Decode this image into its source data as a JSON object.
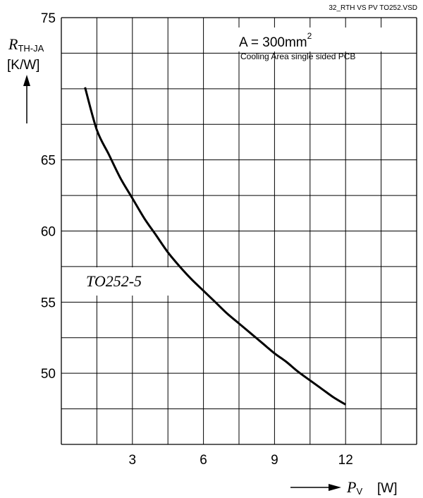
{
  "chart_data": {
    "type": "line",
    "file_label": "32_RTH VS PV TO252.VSD",
    "ylabel": {
      "symbol": "R",
      "subscript": "TH-JA",
      "unit": "[K/W]"
    },
    "xlabel": {
      "symbol": "P",
      "subscript": "V",
      "unit": "[W]"
    },
    "annotation": {
      "main": "A = 300mm",
      "superscript": "2",
      "sub": "Cooling Area single sided PCB"
    },
    "series_label": "TO252-5",
    "xlim": [
      0,
      15
    ],
    "ylim": [
      45,
      75
    ],
    "x_ticks": [
      3,
      6,
      9,
      12
    ],
    "y_ticks": [
      50,
      55,
      60,
      65,
      75
    ],
    "x_tick_labels": [
      "3",
      "6",
      "9",
      "12"
    ],
    "y_tick_labels": [
      "50",
      "55",
      "60",
      "65",
      "75"
    ],
    "grid": true,
    "series": [
      {
        "x": [
          1.0,
          1.5,
          2.0,
          2.5,
          3.0,
          3.5,
          4.0,
          4.5,
          5.0,
          5.5,
          6.0,
          6.5,
          7.0,
          7.5,
          8.0,
          8.5,
          9.0,
          9.5,
          10.0,
          10.5,
          11.0,
          11.5,
          12.0
        ],
        "values": [
          70.1,
          67.1,
          65.4,
          63.7,
          62.3,
          60.9,
          59.7,
          58.5,
          57.5,
          56.6,
          55.8,
          55.0,
          54.2,
          53.5,
          52.8,
          52.1,
          51.4,
          50.8,
          50.1,
          49.5,
          48.9,
          48.3,
          47.8
        ]
      }
    ],
    "colors": {
      "line": "#000000",
      "grid": "#000000",
      "background": "#ffffff"
    }
  }
}
